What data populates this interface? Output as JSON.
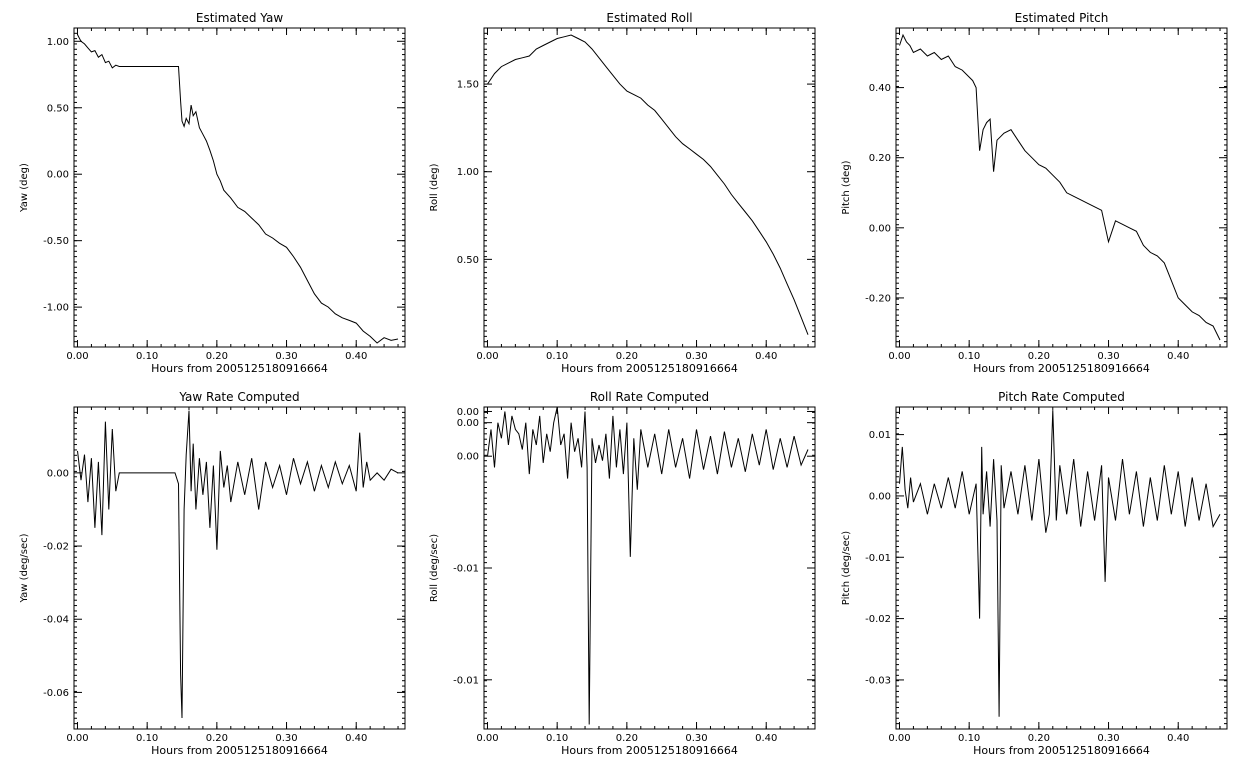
{
  "chart_data": [
    {
      "type": "line",
      "title": "Estimated Yaw",
      "xlabel": "Hours from 2005125180916664",
      "ylabel": "Yaw (deg)",
      "xlim": [
        -0.005,
        0.47
      ],
      "ylim": [
        -1.3,
        1.1
      ],
      "xticks": [
        0.0,
        0.1,
        0.2,
        0.3,
        0.4
      ],
      "xtick_labels": [
        "0.00",
        "0.10",
        "0.20",
        "0.30",
        "0.40"
      ],
      "yticks": [
        1.0,
        0.5,
        0.0,
        -0.5,
        -1.0
      ],
      "ytick_labels": [
        "1.00",
        "0.50",
        "0.00",
        "-0.50",
        "-1.00"
      ],
      "grid": false,
      "series": [
        {
          "x": [
            0.0,
            0.005,
            0.01,
            0.015,
            0.02,
            0.025,
            0.03,
            0.035,
            0.04,
            0.045,
            0.05,
            0.055,
            0.06,
            0.1,
            0.145,
            0.148,
            0.15,
            0.153,
            0.156,
            0.16,
            0.163,
            0.166,
            0.17,
            0.175,
            0.18,
            0.185,
            0.19,
            0.195,
            0.2,
            0.205,
            0.21,
            0.22,
            0.23,
            0.24,
            0.25,
            0.26,
            0.27,
            0.28,
            0.29,
            0.3,
            0.31,
            0.32,
            0.33,
            0.34,
            0.35,
            0.36,
            0.37,
            0.38,
            0.39,
            0.4,
            0.41,
            0.42,
            0.43,
            0.44,
            0.45,
            0.46
          ],
          "y": [
            1.05,
            1.0,
            0.98,
            0.95,
            0.92,
            0.93,
            0.88,
            0.9,
            0.84,
            0.85,
            0.8,
            0.82,
            0.81,
            0.81,
            0.81,
            0.55,
            0.4,
            0.36,
            0.42,
            0.38,
            0.52,
            0.44,
            0.47,
            0.35,
            0.3,
            0.25,
            0.18,
            0.1,
            0.0,
            -0.05,
            -0.12,
            -0.18,
            -0.25,
            -0.28,
            -0.33,
            -0.38,
            -0.45,
            -0.48,
            -0.52,
            -0.55,
            -0.62,
            -0.7,
            -0.8,
            -0.9,
            -0.97,
            -1.0,
            -1.05,
            -1.08,
            -1.1,
            -1.12,
            -1.18,
            -1.22,
            -1.27,
            -1.23,
            -1.25,
            -1.24
          ]
        }
      ]
    },
    {
      "type": "line",
      "title": "Estimated Roll",
      "xlabel": "Hours from 2005125180916664",
      "ylabel": "Roll (deg)",
      "xlim": [
        -0.005,
        0.47
      ],
      "ylim": [
        0.0,
        1.82
      ],
      "xticks": [
        0.0,
        0.1,
        0.2,
        0.3,
        0.4
      ],
      "xtick_labels": [
        "0.00",
        "0.10",
        "0.20",
        "0.30",
        "0.40"
      ],
      "yticks": [
        1.5,
        1.0,
        0.5
      ],
      "ytick_labels": [
        "1.50",
        "1.00",
        "0.50"
      ],
      "grid": false,
      "series": [
        {
          "x": [
            0.0,
            0.01,
            0.02,
            0.03,
            0.04,
            0.05,
            0.06,
            0.07,
            0.08,
            0.09,
            0.1,
            0.11,
            0.12,
            0.13,
            0.14,
            0.15,
            0.16,
            0.17,
            0.18,
            0.19,
            0.2,
            0.21,
            0.22,
            0.23,
            0.24,
            0.25,
            0.26,
            0.27,
            0.28,
            0.29,
            0.3,
            0.31,
            0.32,
            0.33,
            0.34,
            0.35,
            0.36,
            0.37,
            0.38,
            0.39,
            0.4,
            0.41,
            0.42,
            0.43,
            0.44,
            0.45,
            0.46
          ],
          "y": [
            1.5,
            1.56,
            1.6,
            1.62,
            1.64,
            1.65,
            1.66,
            1.7,
            1.72,
            1.74,
            1.76,
            1.77,
            1.78,
            1.76,
            1.74,
            1.7,
            1.65,
            1.6,
            1.55,
            1.5,
            1.46,
            1.44,
            1.42,
            1.38,
            1.35,
            1.3,
            1.25,
            1.2,
            1.16,
            1.13,
            1.1,
            1.07,
            1.03,
            0.98,
            0.93,
            0.87,
            0.82,
            0.77,
            0.72,
            0.66,
            0.6,
            0.53,
            0.45,
            0.36,
            0.27,
            0.17,
            0.07
          ]
        }
      ]
    },
    {
      "type": "line",
      "title": "Estimated Pitch",
      "xlabel": "Hours from 2005125180916664",
      "ylabel": "Pitch (deg)",
      "xlim": [
        -0.005,
        0.47
      ],
      "ylim": [
        -0.34,
        0.57
      ],
      "xticks": [
        0.0,
        0.1,
        0.2,
        0.3,
        0.4
      ],
      "xtick_labels": [
        "0.00",
        "0.10",
        "0.20",
        "0.30",
        "0.40"
      ],
      "yticks": [
        0.4,
        0.2,
        0.0,
        -0.2
      ],
      "ytick_labels": [
        "0.40",
        "0.20",
        "0.00",
        "-0.20"
      ],
      "grid": false,
      "series": [
        {
          "x": [
            0.0,
            0.005,
            0.01,
            0.015,
            0.02,
            0.03,
            0.04,
            0.05,
            0.06,
            0.07,
            0.08,
            0.09,
            0.1,
            0.105,
            0.11,
            0.115,
            0.12,
            0.125,
            0.13,
            0.135,
            0.14,
            0.145,
            0.15,
            0.16,
            0.17,
            0.18,
            0.19,
            0.2,
            0.21,
            0.22,
            0.23,
            0.24,
            0.25,
            0.26,
            0.27,
            0.28,
            0.29,
            0.3,
            0.31,
            0.32,
            0.33,
            0.34,
            0.35,
            0.36,
            0.37,
            0.38,
            0.39,
            0.4,
            0.41,
            0.42,
            0.43,
            0.44,
            0.45,
            0.46
          ],
          "y": [
            0.52,
            0.55,
            0.53,
            0.52,
            0.5,
            0.51,
            0.49,
            0.5,
            0.48,
            0.49,
            0.46,
            0.45,
            0.43,
            0.42,
            0.4,
            0.22,
            0.28,
            0.3,
            0.31,
            0.16,
            0.25,
            0.26,
            0.27,
            0.28,
            0.25,
            0.22,
            0.2,
            0.18,
            0.17,
            0.15,
            0.13,
            0.1,
            0.09,
            0.08,
            0.07,
            0.06,
            0.05,
            -0.04,
            0.02,
            0.01,
            0.0,
            -0.01,
            -0.05,
            -0.07,
            -0.08,
            -0.1,
            -0.15,
            -0.2,
            -0.22,
            -0.24,
            -0.25,
            -0.27,
            -0.28,
            -0.32
          ]
        }
      ]
    },
    {
      "type": "line",
      "title": "Yaw Rate Computed",
      "xlabel": "Hours from 2005125180916664",
      "ylabel": "Yaw (deg/sec)",
      "xlim": [
        -0.005,
        0.47
      ],
      "ylim": [
        -0.07,
        0.018
      ],
      "xticks": [
        0.0,
        0.1,
        0.2,
        0.3,
        0.4
      ],
      "xtick_labels": [
        "0.00",
        "0.10",
        "0.20",
        "0.30",
        "0.40"
      ],
      "yticks": [
        0.0,
        -0.02,
        -0.04,
        -0.06
      ],
      "ytick_labels": [
        "0.00",
        "-0.02",
        "-0.04",
        "-0.06"
      ],
      "grid": false,
      "series": [
        {
          "x": [
            0.0,
            0.005,
            0.01,
            0.015,
            0.02,
            0.025,
            0.03,
            0.035,
            0.04,
            0.045,
            0.05,
            0.055,
            0.06,
            0.1,
            0.14,
            0.145,
            0.148,
            0.15,
            0.153,
            0.156,
            0.16,
            0.163,
            0.166,
            0.17,
            0.175,
            0.18,
            0.185,
            0.19,
            0.195,
            0.2,
            0.205,
            0.21,
            0.215,
            0.22,
            0.23,
            0.24,
            0.25,
            0.26,
            0.27,
            0.28,
            0.29,
            0.3,
            0.31,
            0.32,
            0.33,
            0.34,
            0.35,
            0.36,
            0.37,
            0.38,
            0.39,
            0.4,
            0.405,
            0.41,
            0.415,
            0.42,
            0.43,
            0.44,
            0.45,
            0.46
          ],
          "y": [
            0.006,
            -0.002,
            0.005,
            -0.008,
            0.004,
            -0.015,
            0.003,
            -0.017,
            0.014,
            -0.01,
            0.012,
            -0.005,
            0.0,
            0.0,
            0.0,
            -0.003,
            -0.055,
            -0.067,
            -0.01,
            0.005,
            0.017,
            -0.005,
            0.008,
            -0.01,
            0.004,
            -0.006,
            0.003,
            -0.015,
            0.002,
            -0.021,
            0.006,
            -0.004,
            0.002,
            -0.008,
            0.003,
            -0.006,
            0.004,
            -0.01,
            0.003,
            -0.004,
            0.002,
            -0.006,
            0.004,
            -0.003,
            0.003,
            -0.005,
            0.002,
            -0.004,
            0.003,
            -0.003,
            0.002,
            -0.005,
            0.011,
            -0.004,
            0.003,
            -0.002,
            0.0,
            -0.002,
            0.001,
            0.0
          ]
        }
      ]
    },
    {
      "type": "line",
      "title": "Roll Rate Computed",
      "xlabel": "Hours from 2005125180916664",
      "ylabel": "Roll (deg/sec)",
      "xlim": [
        -0.005,
        0.47
      ],
      "ylim": [
        -0.0122,
        0.0022
      ],
      "xticks": [
        0.0,
        0.1,
        0.2,
        0.3,
        0.4
      ],
      "xtick_labels": [
        "0.00",
        "0.10",
        "0.20",
        "0.30",
        "0.40"
      ],
      "yticks": [
        0.002,
        0.0015,
        0.0,
        -0.005,
        -0.01
      ],
      "ytick_labels": [
        "0.00",
        "0.00",
        "0.00",
        "-0.01",
        "-0.01"
      ],
      "grid": false,
      "series": [
        {
          "x": [
            0.0,
            0.005,
            0.01,
            0.015,
            0.02,
            0.025,
            0.03,
            0.035,
            0.04,
            0.045,
            0.05,
            0.055,
            0.06,
            0.065,
            0.07,
            0.075,
            0.08,
            0.085,
            0.09,
            0.095,
            0.1,
            0.105,
            0.11,
            0.115,
            0.12,
            0.125,
            0.13,
            0.135,
            0.14,
            0.143,
            0.146,
            0.15,
            0.155,
            0.16,
            0.165,
            0.17,
            0.175,
            0.18,
            0.185,
            0.19,
            0.195,
            0.2,
            0.205,
            0.21,
            0.215,
            0.22,
            0.23,
            0.24,
            0.25,
            0.26,
            0.27,
            0.28,
            0.29,
            0.3,
            0.31,
            0.32,
            0.33,
            0.34,
            0.35,
            0.36,
            0.37,
            0.38,
            0.39,
            0.4,
            0.41,
            0.42,
            0.43,
            0.44,
            0.45,
            0.46
          ],
          "y": [
            0.0,
            0.0012,
            -0.0005,
            0.0015,
            0.0008,
            0.002,
            0.0005,
            0.0018,
            0.0012,
            0.001,
            0.0003,
            0.0015,
            -0.0008,
            0.0012,
            0.0005,
            0.0018,
            -0.0003,
            0.001,
            0.0002,
            0.0015,
            0.0022,
            0.0005,
            0.001,
            -0.001,
            0.0015,
            0.0002,
            0.0008,
            -0.0005,
            0.002,
            -0.0005,
            -0.012,
            0.0008,
            -0.0003,
            0.0005,
            -0.0002,
            0.001,
            -0.001,
            0.0018,
            -0.0005,
            0.0012,
            -0.0008,
            0.0015,
            -0.0045,
            0.0008,
            -0.0015,
            0.0012,
            -0.0005,
            0.001,
            -0.0008,
            0.0012,
            -0.0005,
            0.0008,
            -0.001,
            0.0012,
            -0.0006,
            0.0009,
            -0.0008,
            0.0011,
            -0.0005,
            0.0008,
            -0.0007,
            0.001,
            -0.0004,
            0.0012,
            -0.0006,
            0.0008,
            -0.0005,
            0.0009,
            -0.0004,
            0.0003
          ]
        }
      ]
    },
    {
      "type": "line",
      "title": "Pitch Rate Computed",
      "xlabel": "Hours from 2005125180916664",
      "ylabel": "Pitch (deg/sec)",
      "xlim": [
        -0.005,
        0.47
      ],
      "ylim": [
        -0.038,
        0.0145
      ],
      "xticks": [
        0.0,
        0.1,
        0.2,
        0.3,
        0.4
      ],
      "xtick_labels": [
        "0.00",
        "0.10",
        "0.20",
        "0.30",
        "0.40"
      ],
      "yticks": [
        0.01,
        0.0,
        -0.01,
        -0.02,
        -0.03
      ],
      "ytick_labels": [
        "0.01",
        "0.00",
        "-0.01",
        "-0.02",
        "-0.03"
      ],
      "grid": false,
      "series": [
        {
          "x": [
            0.0,
            0.004,
            0.008,
            0.012,
            0.016,
            0.02,
            0.03,
            0.04,
            0.05,
            0.06,
            0.07,
            0.08,
            0.09,
            0.1,
            0.11,
            0.115,
            0.118,
            0.12,
            0.125,
            0.13,
            0.135,
            0.14,
            0.143,
            0.146,
            0.15,
            0.16,
            0.17,
            0.18,
            0.19,
            0.2,
            0.21,
            0.215,
            0.22,
            0.225,
            0.23,
            0.24,
            0.25,
            0.26,
            0.27,
            0.28,
            0.29,
            0.295,
            0.3,
            0.31,
            0.32,
            0.33,
            0.34,
            0.35,
            0.36,
            0.37,
            0.38,
            0.39,
            0.4,
            0.41,
            0.42,
            0.43,
            0.44,
            0.45,
            0.46
          ],
          "y": [
            0.002,
            0.008,
            0.001,
            -0.002,
            0.003,
            -0.001,
            0.002,
            -0.003,
            0.002,
            -0.002,
            0.003,
            -0.002,
            0.004,
            -0.003,
            0.002,
            -0.02,
            0.008,
            -0.003,
            0.004,
            -0.005,
            0.006,
            -0.004,
            -0.036,
            0.005,
            -0.002,
            0.004,
            -0.003,
            0.005,
            -0.004,
            0.006,
            -0.006,
            -0.003,
            0.014,
            -0.004,
            0.005,
            -0.003,
            0.006,
            -0.005,
            0.004,
            -0.004,
            0.005,
            -0.014,
            0.003,
            -0.004,
            0.006,
            -0.003,
            0.004,
            -0.005,
            0.003,
            -0.004,
            0.005,
            -0.003,
            0.004,
            -0.005,
            0.003,
            -0.004,
            0.002,
            -0.005,
            -0.003
          ]
        }
      ]
    }
  ]
}
